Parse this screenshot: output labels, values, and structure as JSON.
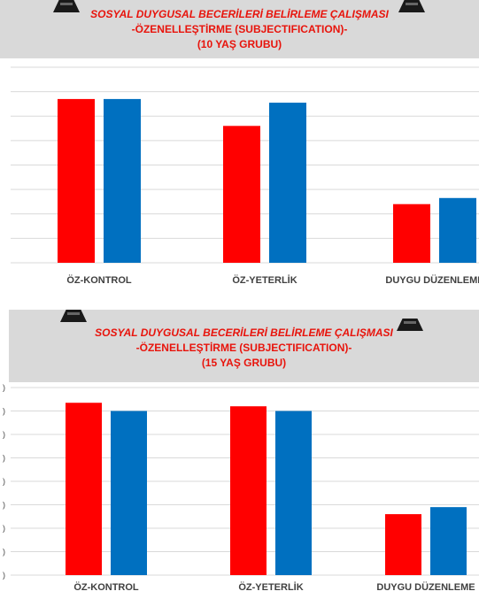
{
  "charts": [
    {
      "banner": {
        "line1": "SOSYAL DUYGUSAL BECERİLERİ  BELİRLEME ÇALIŞMASI",
        "line2": "-ÖZENELLEŞTİRME  (SUBJECTIFICATION)-",
        "line3": "(10 YAŞ GRUBU)"
      }
    },
    {
      "banner": {
        "line1": "SOSYAL DUYGUSAL BECERİLERİ  BELİRLEME ÇALIŞMASI",
        "line2": "-ÖZENELLEŞTİRME  (SUBJECTIFICATION)-",
        "line3": "(15 YAŞ GRUBU)"
      }
    }
  ],
  "colors": {
    "series1": "#ff0000",
    "series2": "#0070c0",
    "grid": "#d9d9d9",
    "banner_bg": "#d9d9d9",
    "banner_text": "#e8140c"
  },
  "chart_data": [
    {
      "type": "bar",
      "categories": [
        "ÖZ-KONTROL",
        "ÖZ-YETERLİK",
        "DUYGU DÜZENLEME"
      ],
      "series": [
        {
          "values": [
            6.7,
            5.6,
            2.4
          ]
        },
        {
          "values": [
            6.7,
            6.55,
            2.65
          ]
        }
      ],
      "ylim": [
        0,
        8
      ],
      "grid": true
    },
    {
      "type": "bar",
      "categories": [
        "ÖZ-KONTROL",
        "ÖZ-YETERLİK",
        "DUYGU DÜZENLEME"
      ],
      "series": [
        {
          "values": [
            7.35,
            7.2,
            2.6
          ]
        },
        {
          "values": [
            7.0,
            7.0,
            2.9
          ]
        }
      ],
      "ylim": [
        0,
        8
      ],
      "grid": true
    }
  ]
}
